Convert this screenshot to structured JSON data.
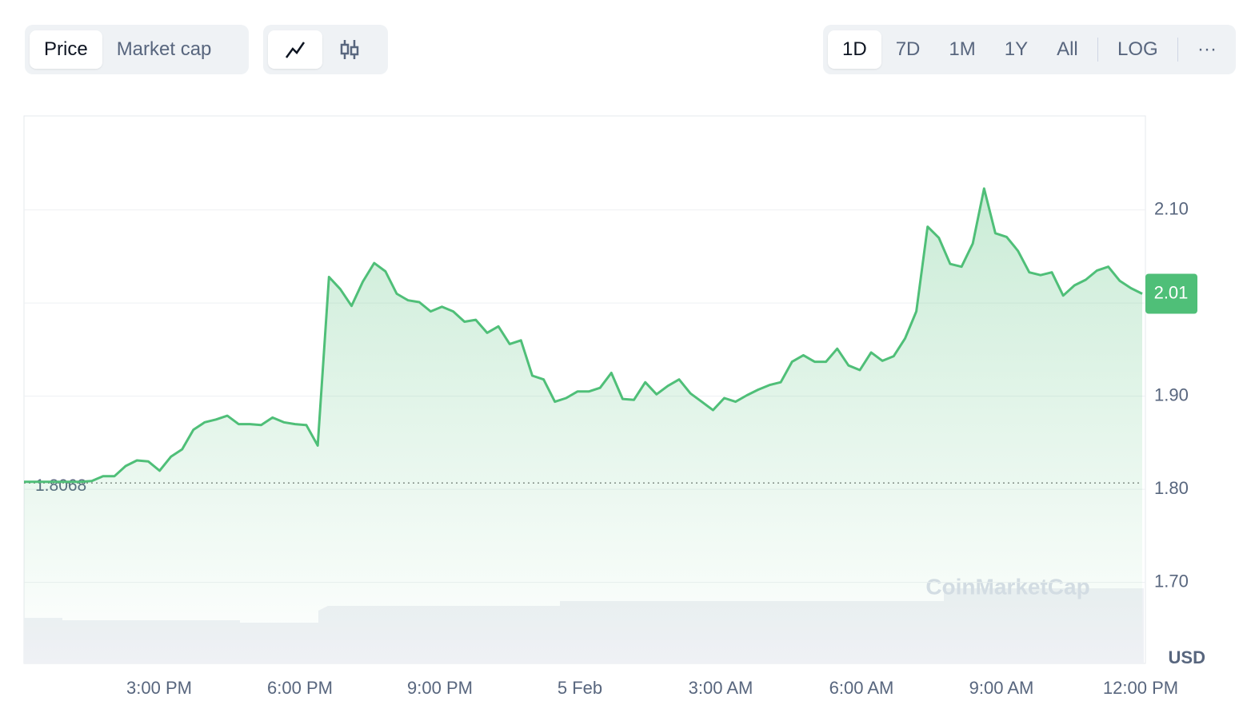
{
  "toolbar": {
    "tabs": [
      "Price",
      "Market cap"
    ],
    "ranges": [
      "1D",
      "7D",
      "1M",
      "1Y",
      "All"
    ],
    "log": "LOG",
    "more": "···"
  },
  "watermark": "CoinMarketCap",
  "chart_data": {
    "type": "line",
    "color": "#4fbf78",
    "values": [
      1.808,
      1.808,
      1.808,
      1.808,
      1.808,
      1.808,
      1.809,
      1.814,
      1.814,
      1.825,
      1.831,
      1.83,
      1.82,
      1.835,
      1.843,
      1.864,
      1.872,
      1.875,
      1.879,
      1.87,
      1.87,
      1.869,
      1.877,
      1.872,
      1.87,
      1.869,
      1.847,
      2.028,
      2.015,
      1.997,
      2.023,
      2.043,
      2.034,
      2.01,
      2.003,
      2.001,
      1.991,
      1.996,
      1.991,
      1.98,
      1.982,
      1.968,
      1.975,
      1.956,
      1.96,
      1.922,
      1.918,
      1.894,
      1.898,
      1.905,
      1.905,
      1.909,
      1.925,
      1.897,
      1.896,
      1.915,
      1.902,
      1.911,
      1.918,
      1.903,
      1.894,
      1.885,
      1.898,
      1.894,
      1.901,
      1.907,
      1.912,
      1.915,
      1.937,
      1.944,
      1.937,
      1.937,
      1.951,
      1.933,
      1.928,
      1.947,
      1.938,
      1.943,
      1.962,
      1.991,
      2.082,
      2.07,
      2.042,
      2.039,
      2.064,
      2.123,
      2.075,
      2.071,
      2.056,
      2.033,
      2.03,
      2.033,
      2.008,
      2.019,
      2.025,
      2.035,
      2.039,
      2.024,
      2.016,
      2.01
    ],
    "start_price": 1.8068,
    "current_price": 2.01,
    "x_labels": [
      "3:00 PM",
      "6:00 PM",
      "9:00 PM",
      "5 Feb",
      "3:00 AM",
      "6:00 AM",
      "9:00 AM",
      "12:00 PM"
    ],
    "ylim": [
      1.613,
      2.201
    ],
    "yticks": [
      {
        "value": 1.7,
        "label": "1.70"
      },
      {
        "value": 1.8,
        "label": "1.80"
      },
      {
        "value": 1.9,
        "label": "1.90"
      },
      {
        "value": 2.0,
        "label": null
      },
      {
        "value": 2.1,
        "label": "2.10"
      }
    ],
    "y_unit": "USD",
    "grid": true
  }
}
